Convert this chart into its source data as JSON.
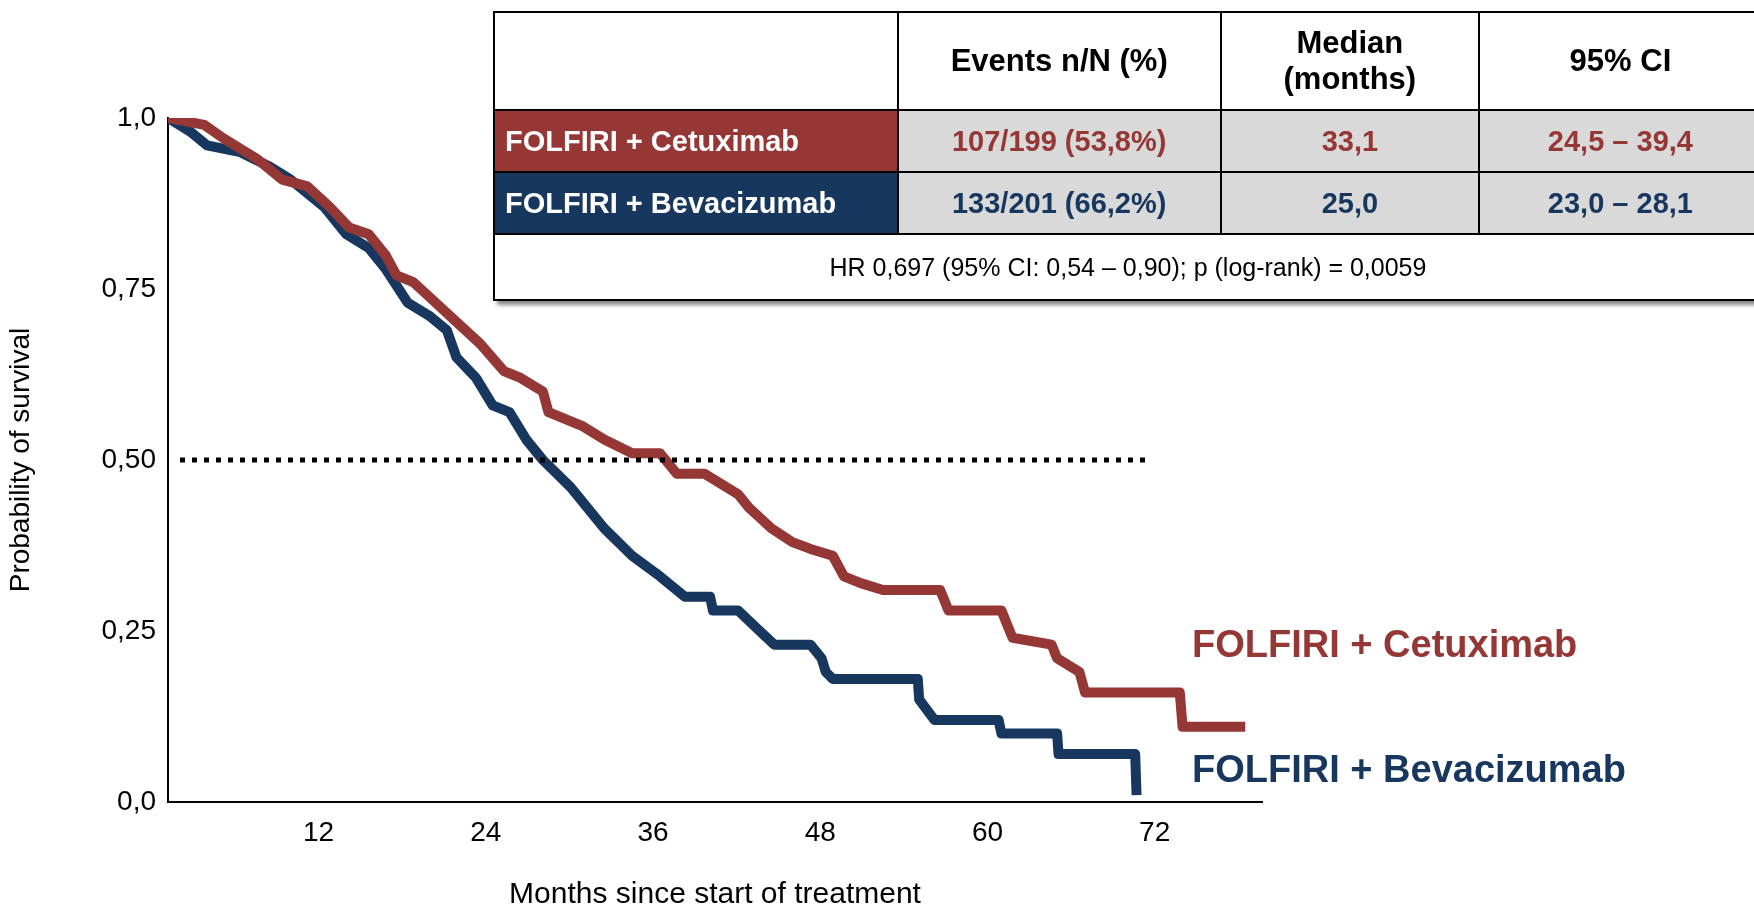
{
  "chart_data": {
    "type": "line",
    "xlabel": "Months since start of treatment",
    "ylabel": "Probability of survival",
    "xlim": [
      1.2,
      79.7
    ],
    "xticks": [
      12,
      24,
      36,
      48,
      60,
      72
    ],
    "ylim": [
      0,
      1
    ],
    "yticks": [
      {
        "value": 0,
        "label": "0,0"
      },
      {
        "value": 0.25,
        "label": "0,25"
      },
      {
        "value": 0.5,
        "label": "0,50"
      },
      {
        "value": 0.75,
        "label": "0,75"
      },
      {
        "value": 1,
        "label": "1,0"
      }
    ],
    "grid": false,
    "legend": false,
    "marker": "none",
    "line_style": "solid",
    "series": [
      {
        "name": "FOLFIRI + Cetuximab",
        "color": "#953735",
        "x": [
          1.2,
          3.8,
          5.2,
          7.6,
          9.4,
          11.2,
          12.8,
          14.2,
          15.6,
          16.8,
          17.6,
          18.8,
          20.4,
          22.0,
          23.6,
          25.3,
          26.5,
          28.1,
          28.5,
          30.9,
          32.5,
          34.5,
          36.5,
          37.7,
          39.7,
          42.1,
          42.9,
          44.5,
          46.0,
          47.3,
          48.9,
          49.7,
          50.9,
          52.5,
          56.6,
          57.2,
          61.0,
          61.8,
          64.6,
          65.0,
          66.6,
          67.0,
          73.8,
          74.0,
          78.5
        ],
        "values": [
          1.0,
          0.99,
          0.97,
          0.94,
          0.91,
          0.9,
          0.87,
          0.84,
          0.83,
          0.8,
          0.77,
          0.76,
          0.73,
          0.7,
          0.67,
          0.63,
          0.62,
          0.6,
          0.57,
          0.55,
          0.53,
          0.51,
          0.51,
          0.48,
          0.48,
          0.45,
          0.43,
          0.4,
          0.38,
          0.37,
          0.36,
          0.33,
          0.32,
          0.31,
          0.31,
          0.28,
          0.28,
          0.24,
          0.23,
          0.21,
          0.19,
          0.16,
          0.16,
          0.11,
          0.11
        ]
      },
      {
        "name": "FOLFIRI + Bevacizumab",
        "color": "#17375e",
        "x": [
          1.2,
          2.8,
          4.0,
          6.4,
          8.4,
          10.0,
          12.4,
          14.0,
          15.6,
          16.8,
          18.4,
          20.0,
          21.2,
          21.9,
          23.3,
          24.5,
          25.7,
          26.9,
          28.1,
          30.1,
          32.5,
          34.5,
          36.5,
          38.3,
          38.9,
          40.1,
          40.3,
          42.1,
          44.7,
          47.3,
          48.1,
          48.4,
          48.9,
          55.0,
          55.1,
          56.2,
          60.8,
          61.0,
          65.0,
          65.1,
          70.6,
          70.7
        ],
        "values": [
          1.0,
          0.98,
          0.96,
          0.95,
          0.93,
          0.91,
          0.87,
          0.83,
          0.81,
          0.78,
          0.73,
          0.71,
          0.69,
          0.65,
          0.62,
          0.58,
          0.57,
          0.53,
          0.5,
          0.46,
          0.4,
          0.36,
          0.33,
          0.3,
          0.3,
          0.3,
          0.28,
          0.28,
          0.23,
          0.23,
          0.21,
          0.19,
          0.18,
          0.18,
          0.15,
          0.12,
          0.12,
          0.1,
          0.1,
          0.07,
          0.07,
          0.01
        ]
      }
    ],
    "ref_lines": [
      {
        "axis": "y",
        "value": 0.5,
        "color": "#000000",
        "line_style": "dotted"
      }
    ],
    "annotations": [
      "Events n/N (%)",
      "Median (months)",
      "95% CI",
      "107/199 (53,8%)",
      "33,1",
      "24,5 – 39,4",
      "133/201 (66,2%)",
      "25,0",
      "23,0 – 28,1",
      "HR 0,697 (95% CI: 0,54 – 0,90); p (log-rank) = 0,0059"
    ]
  }
}
